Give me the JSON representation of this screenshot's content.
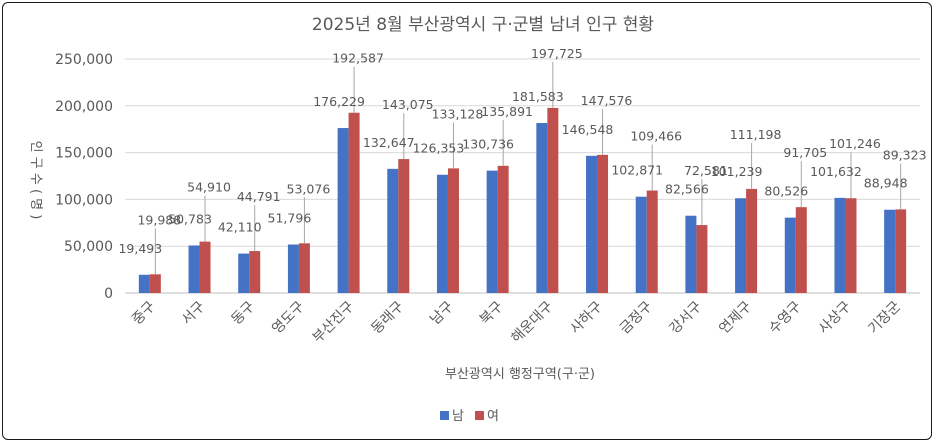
{
  "chart_data": {
    "type": "bar",
    "title": "2025년 8월 부산광역시 구·군별 남녀 인구 현황",
    "xlabel": "부산광역시 행정구역(구·군)",
    "ylabel": "인 구 수 ( 명 )",
    "ylim": [
      0,
      250000
    ],
    "yticks": [
      0,
      50000,
      100000,
      150000,
      200000,
      250000
    ],
    "ytick_labels": [
      "0",
      "50,000",
      "100,000",
      "150,000",
      "200,000",
      "250,000"
    ],
    "grid": true,
    "legend_position": "bottom",
    "categories": [
      "중구",
      "서구",
      "동구",
      "영도구",
      "부산진구",
      "동래구",
      "남구",
      "북구",
      "해운대구",
      "사하구",
      "금정구",
      "강서구",
      "연제구",
      "수영구",
      "사상구",
      "기장군"
    ],
    "series": [
      {
        "name": "남",
        "color": "#4472C4",
        "values": [
          19493,
          50783,
          42110,
          51796,
          176229,
          132647,
          126353,
          130736,
          181583,
          146548,
          102871,
          82566,
          101239,
          80526,
          101632,
          88948
        ],
        "labels": [
          "19,493",
          "50,783",
          "42,110",
          "51,796",
          "176,229",
          "132,647",
          "126,353",
          "130,736",
          "181,583",
          "146,548",
          "102,871",
          "82,566",
          "101,239",
          "80,526",
          "101,632",
          "88,948"
        ]
      },
      {
        "name": "여",
        "color": "#C0504D",
        "values": [
          19988,
          54910,
          44791,
          53076,
          192587,
          143075,
          133128,
          135891,
          197725,
          147576,
          109466,
          72581,
          111198,
          91705,
          101246,
          89323
        ],
        "labels": [
          "19,988",
          "54,910",
          "44,791",
          "53,076",
          "192,587",
          "143,075",
          "133,128",
          "135,891",
          "197,725",
          "147,576",
          "109,466",
          "72,581",
          "111,198",
          "91,705",
          "101,246",
          "89,323"
        ]
      }
    ]
  }
}
